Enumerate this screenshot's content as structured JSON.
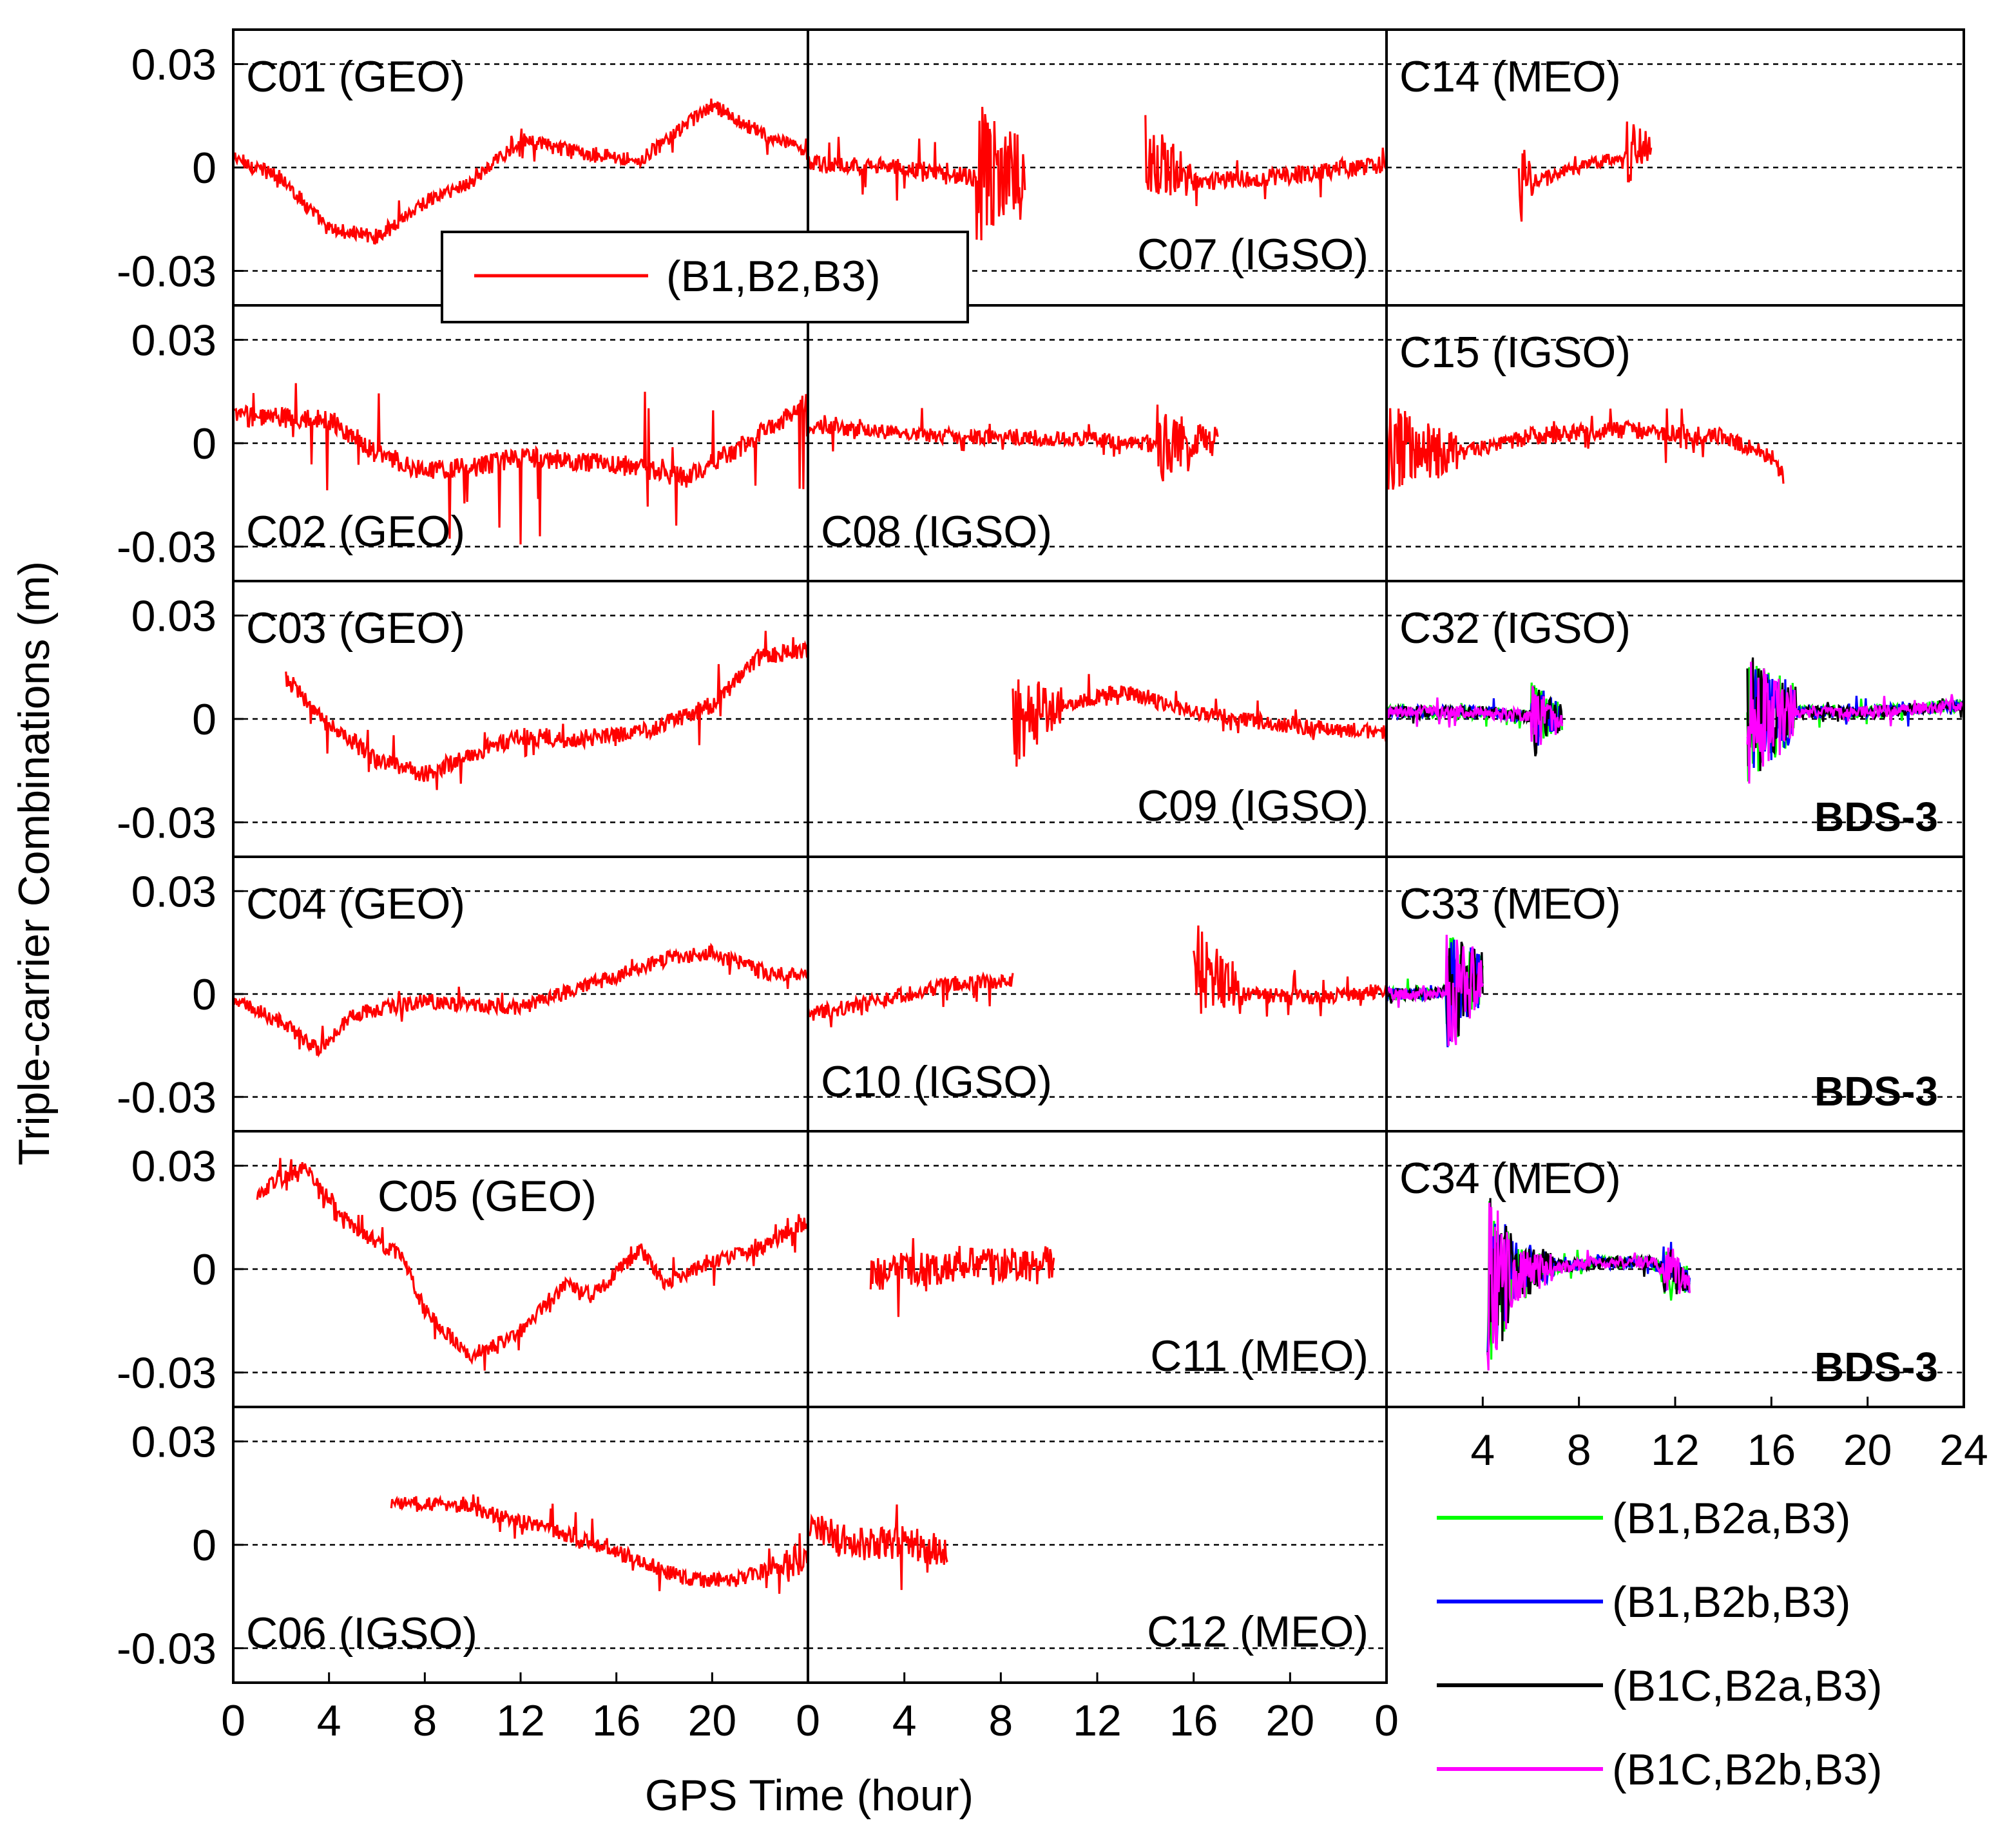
{
  "chart_data": {
    "type": "line",
    "ylabel": "Triple-carrier Combinations (m)",
    "xlabel": "GPS Time (hour)",
    "xlim": [
      0,
      24
    ],
    "ylim": [
      -0.04,
      0.04
    ],
    "xticks": [
      0,
      4,
      8,
      12,
      16,
      20
    ],
    "right_xticks": [
      4,
      8,
      12,
      16,
      20,
      24
    ],
    "yticks": [
      0.03,
      0,
      -0.03
    ],
    "ytick_labels": [
      "0.03",
      "0",
      "-0.03"
    ],
    "gridlines_y": [
      0.03,
      0,
      -0.03
    ],
    "colors": {
      "B1B2B3": "#ff0000",
      "B1B2aB3": "#00ff00",
      "B1B2bB3": "#0000ff",
      "B1CB2aB3": "#000000",
      "B1CB2bB3": "#ff00ff"
    },
    "legend_top": {
      "label": "(B1,B2,B3)",
      "color": "#ff0000"
    },
    "legend_bottom": [
      {
        "label": "(B1,B2a,B3)",
        "color": "#00ff00"
      },
      {
        "label": "(B1,B2b,B3)",
        "color": "#0000ff"
      },
      {
        "label": "(B1C,B2a,B3)",
        "color": "#000000"
      },
      {
        "label": "(B1C,B2b,B3)",
        "color": "#ff00ff"
      }
    ],
    "panels": [
      {
        "col": 0,
        "row": 0,
        "title": "C01 (GEO)",
        "title_pos": "top-left",
        "series": "B1B2B3",
        "start": 0,
        "end": 24,
        "noise": 0.0022,
        "spikes": 0.002,
        "shape": [
          [
            0,
            0.003
          ],
          [
            2,
            -0.003
          ],
          [
            4,
            -0.018
          ],
          [
            6,
            -0.02
          ],
          [
            8,
            -0.01
          ],
          [
            10,
            -0.004
          ],
          [
            12,
            0.008
          ],
          [
            14,
            0.005
          ],
          [
            17,
            0.002
          ],
          [
            20,
            0.018
          ],
          [
            22,
            0.01
          ],
          [
            24,
            0.004
          ]
        ]
      },
      {
        "col": 1,
        "row": 0,
        "title": "C07 (IGSO)",
        "title_pos": "bottom-right",
        "series": "B1B2B3",
        "start": 0,
        "end": 24,
        "noise": 0.0025,
        "spikes": 0.004,
        "segments": [
          [
            0,
            9
          ],
          [
            14,
            24
          ]
        ],
        "shape": [
          [
            0,
            0.001
          ],
          [
            4,
            0.0
          ],
          [
            7,
            -0.003
          ],
          [
            9,
            0.0
          ],
          [
            14,
            0.004
          ],
          [
            16,
            -0.004
          ],
          [
            19,
            -0.003
          ],
          [
            24,
            0.001
          ]
        ],
        "bursts": [
          [
            7,
            9,
            0.022
          ],
          [
            14,
            16,
            0.012
          ]
        ]
      },
      {
        "col": 2,
        "row": 0,
        "title": "C14 (MEO)",
        "title_pos": "top-left",
        "series": "B1B2B3",
        "start": 0,
        "end": 24,
        "noise": 0.002,
        "spikes": 0.004,
        "segments": [
          [
            5.5,
            11
          ]
        ],
        "shape": [
          [
            5.5,
            -0.005
          ],
          [
            8,
            0.0
          ],
          [
            10,
            0.004
          ],
          [
            11,
            0.007
          ]
        ],
        "bursts": [
          [
            5.5,
            6.3,
            0.012
          ],
          [
            10,
            11,
            0.01
          ]
        ]
      },
      {
        "col": 0,
        "row": 1,
        "title": "C02 (GEO)",
        "title_pos": "bottom-left",
        "series": "B1B2B3",
        "start": 0,
        "end": 24,
        "noise": 0.003,
        "spikes": 0.012,
        "shape": [
          [
            0,
            0.008
          ],
          [
            4,
            0.007
          ],
          [
            6,
            -0.003
          ],
          [
            8,
            -0.008
          ],
          [
            10,
            -0.007
          ],
          [
            12,
            -0.004
          ],
          [
            16,
            -0.006
          ],
          [
            19,
            -0.01
          ],
          [
            21,
            -0.002
          ],
          [
            24,
            0.012
          ]
        ]
      },
      {
        "col": 1,
        "row": 1,
        "title": "C08 (IGSO)",
        "title_pos": "bottom-left",
        "series": "B1B2B3",
        "start": 0,
        "end": 24,
        "noise": 0.0022,
        "spikes": 0.003,
        "segments": [
          [
            0,
            17
          ]
        ],
        "shape": [
          [
            0,
            0.005
          ],
          [
            6,
            0.002
          ],
          [
            12,
            0.001
          ],
          [
            15,
            -0.001
          ],
          [
            17,
            0.0
          ]
        ],
        "bursts": [
          [
            14.5,
            17,
            0.012
          ]
        ]
      },
      {
        "col": 2,
        "row": 1,
        "title": "C15 (IGSO)",
        "title_pos": "top-left",
        "series": "B1B2B3",
        "start": 0,
        "end": 24,
        "noise": 0.0025,
        "spikes": 0.004,
        "segments": [
          [
            0,
            16.5
          ]
        ],
        "shape": [
          [
            0,
            -0.002
          ],
          [
            3,
            -0.003
          ],
          [
            6,
            0.002
          ],
          [
            10,
            0.004
          ],
          [
            14,
            0.002
          ],
          [
            16,
            -0.004
          ],
          [
            16.5,
            -0.01
          ]
        ],
        "bursts": [
          [
            0,
            3,
            0.014
          ]
        ]
      },
      {
        "col": 0,
        "row": 2,
        "title": "C03 (GEO)",
        "title_pos": "top-left",
        "series": "B1B2B3",
        "start": 0,
        "end": 24,
        "noise": 0.0025,
        "spikes": 0.005,
        "segments": [
          [
            2.2,
            24
          ]
        ],
        "shape": [
          [
            2.2,
            0.012
          ],
          [
            4,
            -0.002
          ],
          [
            6,
            -0.012
          ],
          [
            8,
            -0.016
          ],
          [
            10,
            -0.01
          ],
          [
            12,
            -0.005
          ],
          [
            14,
            -0.006
          ],
          [
            17,
            -0.004
          ],
          [
            20,
            0.004
          ],
          [
            22,
            0.018
          ],
          [
            24,
            0.02
          ]
        ]
      },
      {
        "col": 1,
        "row": 2,
        "title": "C09 (IGSO)",
        "title_pos": "bottom-right",
        "series": "B1B2B3",
        "start": 0,
        "end": 24,
        "noise": 0.0022,
        "spikes": 0.003,
        "segments": [
          [
            8.5,
            24
          ]
        ],
        "shape": [
          [
            8.5,
            -0.002
          ],
          [
            10,
            0.003
          ],
          [
            13,
            0.008
          ],
          [
            16,
            0.002
          ],
          [
            20,
            -0.002
          ],
          [
            24,
            -0.004
          ]
        ],
        "bursts": [
          [
            8.5,
            10.5,
            0.014
          ]
        ]
      },
      {
        "col": 2,
        "row": 2,
        "title": "C32 (IGSO)",
        "title_pos": "top-left",
        "bds3": true,
        "start": 0,
        "end": 24,
        "noise": 0.0018,
        "spikes": 0.002,
        "segments": [
          [
            0,
            7.3
          ],
          [
            15,
            24
          ]
        ],
        "shape": [
          [
            0,
            0.002
          ],
          [
            4,
            0.002
          ],
          [
            7.3,
            0.0
          ],
          [
            15,
            0.0
          ],
          [
            17,
            0.002
          ],
          [
            20,
            0.002
          ],
          [
            24,
            0.004
          ]
        ],
        "bursts": [
          [
            6,
            7.3,
            0.01
          ],
          [
            15,
            17,
            0.02
          ]
        ]
      },
      {
        "col": 0,
        "row": 3,
        "title": "C04 (GEO)",
        "title_pos": "top-left",
        "series": "B1B2B3",
        "start": 0,
        "end": 24,
        "noise": 0.0022,
        "spikes": 0.002,
        "shape": [
          [
            0,
            -0.002
          ],
          [
            2,
            -0.008
          ],
          [
            3.5,
            -0.016
          ],
          [
            5,
            -0.006
          ],
          [
            8,
            -0.002
          ],
          [
            12,
            -0.004
          ],
          [
            15,
            0.003
          ],
          [
            18,
            0.01
          ],
          [
            20,
            0.012
          ],
          [
            22,
            0.007
          ],
          [
            24,
            0.005
          ]
        ]
      },
      {
        "col": 1,
        "row": 3,
        "title": "C10 (IGSO)",
        "title_pos": "bottom-left",
        "series": "B1B2B3",
        "start": 0,
        "end": 24,
        "noise": 0.0022,
        "spikes": 0.003,
        "segments": [
          [
            0,
            8.5
          ],
          [
            16,
            24
          ]
        ],
        "shape": [
          [
            0,
            -0.006
          ],
          [
            3,
            -0.002
          ],
          [
            6,
            0.003
          ],
          [
            8.5,
            0.004
          ],
          [
            16,
            0.006
          ],
          [
            18,
            0.0
          ],
          [
            21,
            -0.001
          ],
          [
            24,
            0.001
          ]
        ],
        "bursts": [
          [
            16,
            18,
            0.016
          ]
        ]
      },
      {
        "col": 2,
        "row": 3,
        "title": "C33 (MEO)",
        "title_pos": "top-left",
        "bds3": true,
        "start": 0,
        "end": 24,
        "noise": 0.0018,
        "spikes": 0.002,
        "segments": [
          [
            0,
            4
          ]
        ],
        "shape": [
          [
            0,
            0.0
          ],
          [
            2,
            0.0
          ],
          [
            3,
            0.002
          ],
          [
            4,
            0.005
          ]
        ],
        "bursts": [
          [
            2.5,
            4,
            0.018
          ]
        ]
      },
      {
        "col": 0,
        "row": 4,
        "title": "C05 (GEO)",
        "title_pos": "top-center",
        "series": "B1B2B3",
        "start": 0,
        "end": 24,
        "noise": 0.0022,
        "spikes": 0.003,
        "segments": [
          [
            1,
            24
          ]
        ],
        "shape": [
          [
            1,
            0.022
          ],
          [
            3,
            0.03
          ],
          [
            5,
            0.012
          ],
          [
            7,
            0.004
          ],
          [
            8,
            -0.012
          ],
          [
            10,
            -0.026
          ],
          [
            12,
            -0.018
          ],
          [
            14,
            -0.004
          ],
          [
            15,
            -0.008
          ],
          [
            17,
            0.006
          ],
          [
            18,
            -0.004
          ],
          [
            20,
            0.002
          ],
          [
            22,
            0.006
          ],
          [
            24,
            0.014
          ]
        ]
      },
      {
        "col": 1,
        "row": 4,
        "title": "C11 (MEO)",
        "title_pos": "bottom-right",
        "series": "B1B2B3",
        "start": 0,
        "end": 24,
        "noise": 0.005,
        "spikes": 0.006,
        "segments": [
          [
            2.6,
            10.2
          ]
        ],
        "shape": [
          [
            2.6,
            -0.002
          ],
          [
            6,
            0.001
          ],
          [
            10.2,
            0.002
          ]
        ]
      },
      {
        "col": 2,
        "row": 4,
        "title": "C34 (MEO)",
        "title_pos": "top-left",
        "bds3": true,
        "start": 0,
        "end": 24,
        "noise": 0.0018,
        "spikes": 0.002,
        "segments": [
          [
            4.2,
            12.6
          ]
        ],
        "shape": [
          [
            4.2,
            -0.004
          ],
          [
            6,
            0.0
          ],
          [
            9,
            0.002
          ],
          [
            11,
            0.002
          ],
          [
            12.6,
            -0.004
          ]
        ],
        "bursts": [
          [
            4.2,
            5.2,
            0.03
          ],
          [
            5.2,
            7,
            0.01
          ],
          [
            11.5,
            12.6,
            0.008
          ]
        ]
      },
      {
        "col": 0,
        "row": 5,
        "title": "C06 (IGSO)",
        "title_pos": "bottom-left",
        "series": "B1B2B3",
        "start": 0,
        "end": 24,
        "noise": 0.0022,
        "spikes": 0.003,
        "segments": [
          [
            6.6,
            24
          ]
        ],
        "shape": [
          [
            6.6,
            0.012
          ],
          [
            9,
            0.012
          ],
          [
            13,
            0.005
          ],
          [
            16,
            -0.002
          ],
          [
            19,
            -0.01
          ],
          [
            21,
            -0.01
          ],
          [
            24,
            -0.004
          ]
        ],
        "bursts": [
          [
            23,
            24,
            0.008
          ]
        ]
      },
      {
        "col": 1,
        "row": 5,
        "title": "C12 (MEO)",
        "title_pos": "bottom-right",
        "series": "B1B2B3",
        "start": 0,
        "end": 24,
        "noise": 0.005,
        "spikes": 0.006,
        "segments": [
          [
            0,
            5.8
          ]
        ],
        "shape": [
          [
            0,
            0.006
          ],
          [
            2,
            0.0
          ],
          [
            4,
            0.001
          ],
          [
            5.8,
            -0.002
          ]
        ]
      }
    ]
  }
}
